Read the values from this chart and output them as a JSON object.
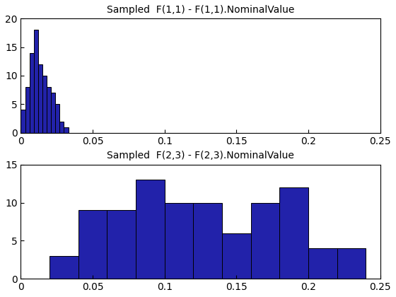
{
  "ax1": {
    "title": "Sampled  F(1,1) - F(1,1).NominalValue",
    "bar_color": "#2222AA",
    "edge_color": "#000000",
    "xlim": [
      0,
      0.25
    ],
    "ylim": [
      0,
      20
    ],
    "yticks": [
      0,
      5,
      10,
      15,
      20
    ],
    "xticks": [
      0,
      0.05,
      0.1,
      0.15,
      0.2,
      0.25
    ],
    "bin_edges": [
      0.0,
      0.003,
      0.006,
      0.009,
      0.012,
      0.015,
      0.018,
      0.021,
      0.024,
      0.027,
      0.03,
      0.033,
      0.036
    ],
    "bar_heights": [
      4,
      8,
      14,
      18,
      12,
      10,
      8,
      7,
      5,
      2,
      1,
      0
    ]
  },
  "ax2": {
    "title": "Sampled  F(2,3) - F(2,3).NominalValue",
    "bar_color": "#2222AA",
    "edge_color": "#000000",
    "xlim": [
      0,
      0.25
    ],
    "ylim": [
      0,
      15
    ],
    "yticks": [
      0,
      5,
      10,
      15
    ],
    "xticks": [
      0,
      0.05,
      0.1,
      0.15,
      0.2,
      0.25
    ],
    "bin_edges": [
      0.02,
      0.04,
      0.06,
      0.08,
      0.1,
      0.12,
      0.14,
      0.16,
      0.18,
      0.2,
      0.22,
      0.24
    ],
    "bar_heights": [
      3,
      9,
      9,
      13,
      10,
      10,
      6,
      10,
      12,
      4,
      4
    ]
  },
  "figure": {
    "bg_color": "#ffffff",
    "figsize": [
      5.6,
      4.2
    ],
    "dpi": 100
  }
}
